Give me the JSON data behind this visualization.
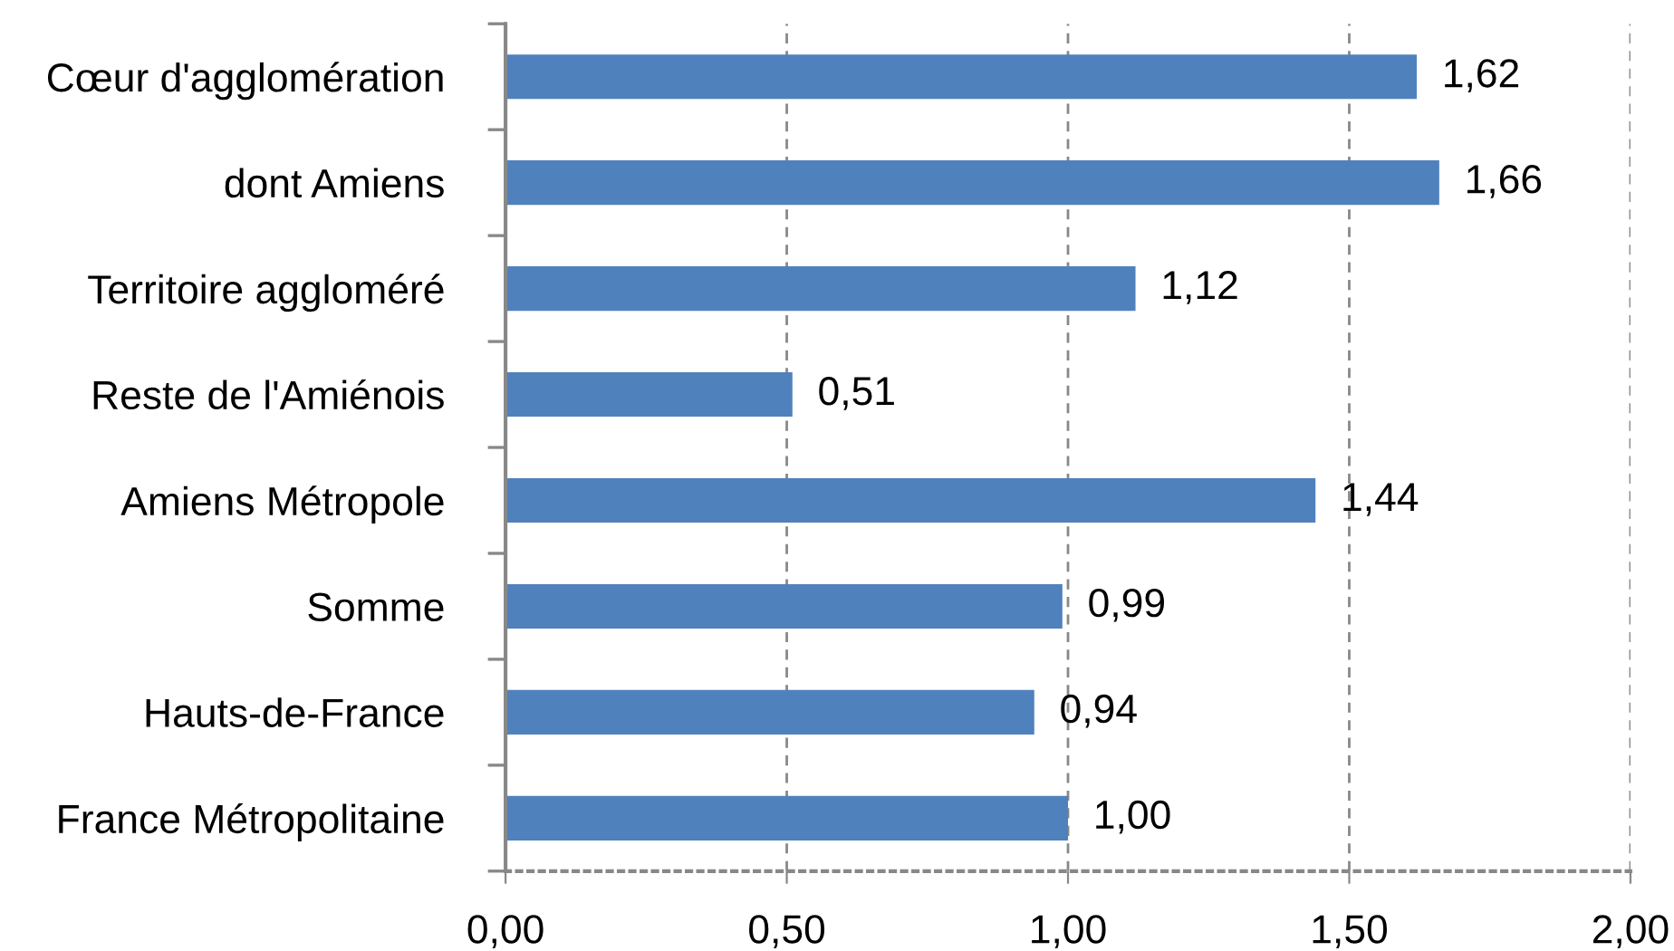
{
  "chart_data": {
    "type": "bar",
    "orientation": "horizontal",
    "categories": [
      "Cœur d'agglomération",
      "dont Amiens",
      "Territoire aggloméré",
      "Reste de l'Amiénois",
      "Amiens Métropole",
      "Somme",
      "Hauts-de-France",
      "France Métropolitaine"
    ],
    "values": [
      1.62,
      1.66,
      1.12,
      0.51,
      1.44,
      0.99,
      0.94,
      1.0
    ],
    "value_labels": [
      "1,62",
      "1,66",
      "1,12",
      "0,51",
      "1,44",
      "0,99",
      "0,94",
      "1,00"
    ],
    "color": "#4f81bd",
    "xlim": [
      0,
      2
    ],
    "xticks": [
      {
        "value": 0,
        "label": "0,00"
      },
      {
        "value": 0.5,
        "label": "0,50"
      },
      {
        "value": 1,
        "label": "1,00"
      },
      {
        "value": 1.5,
        "label": "1,50"
      },
      {
        "value": 2,
        "label": "2,00"
      }
    ],
    "grid": "x"
  }
}
